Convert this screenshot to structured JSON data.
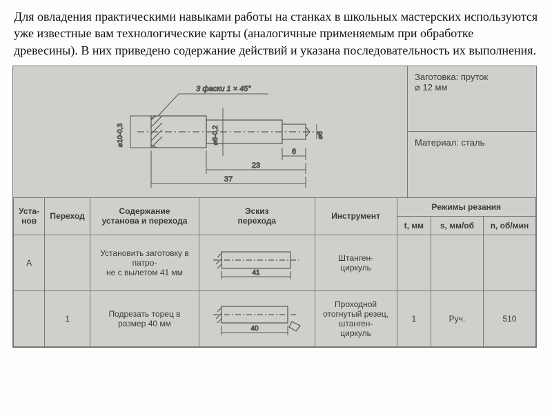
{
  "intro": "Для овладения практическими навыками работы на станках в школьных мастерских используются уже известные вам технологические карты (аналогичные применяемым при обработке древесины). В них приведено содержание действий и указана последовательность их выполнения.",
  "info": {
    "blank_label": "Заготовка: пруток",
    "blank_size": "⌀ 12 мм",
    "material": "Материал: сталь"
  },
  "drawing": {
    "chamfer_note": "3 фаски 1 × 45°",
    "dia1": "⌀10-0,3",
    "dia2": "⌀8-0,2",
    "dia3": "⌀6",
    "dim_6": "6",
    "dim_23": "23",
    "dim_37": "37"
  },
  "headers": {
    "ustanov": "Уста-\nнов",
    "perehod": "Переход",
    "content": "Содержание\nустанова и перехода",
    "sketch": "Эскиз\nперехода",
    "instrument": "Инструмент",
    "modes": "Режимы резания",
    "t": "t, мм",
    "s": "s, мм/об",
    "n": "n, об/мин"
  },
  "rows": [
    {
      "ustanov": "А",
      "perehod": "",
      "content": "Установить заготовку в патро-\nне с вылетом 41 мм",
      "instrument": "Штанген-\nциркуль",
      "t": "",
      "s": "",
      "n": "",
      "sketch_dim": "41"
    },
    {
      "ustanov": "",
      "perehod": "1",
      "content": "Подрезать торец в размер 40 мм",
      "instrument": "Проходной отогнутый резец, штанген-\nциркуль",
      "t": "1",
      "s": "Руч.",
      "n": "510",
      "sketch_dim": "40"
    }
  ],
  "colors": {
    "scan_bg": "#cfd0cc",
    "line": "#555555",
    "text": "#3a3a3a"
  }
}
